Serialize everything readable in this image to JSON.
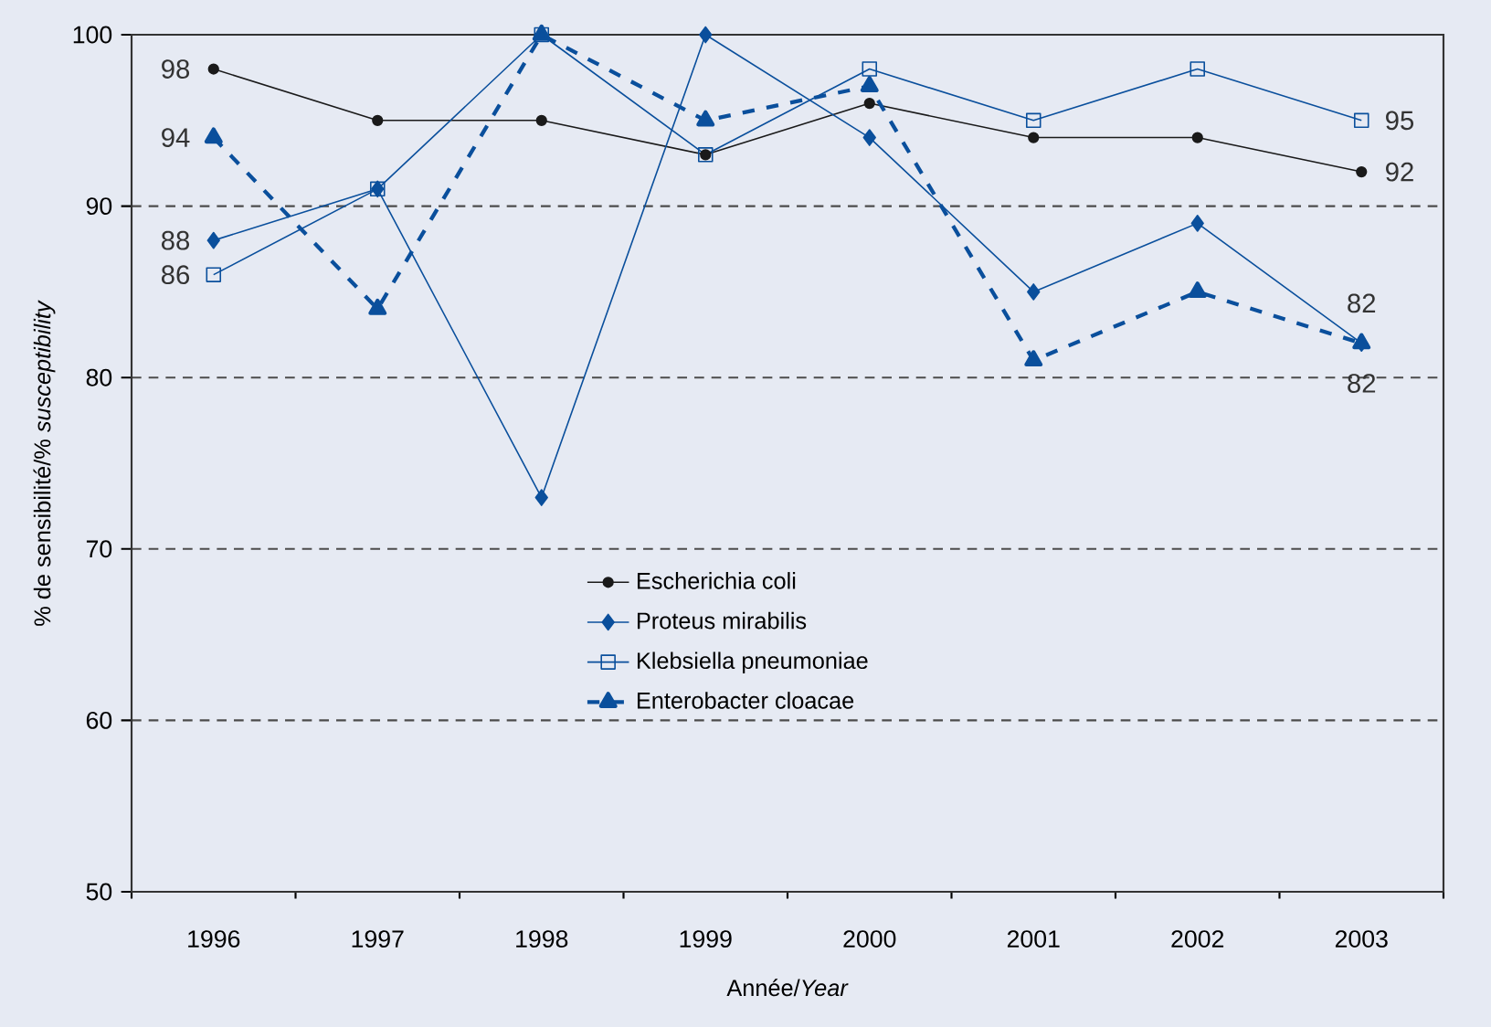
{
  "chart_data": {
    "type": "line",
    "categories": [
      "1996",
      "1997",
      "1998",
      "1999",
      "2000",
      "2001",
      "2002",
      "2003"
    ],
    "xlabel": "Année/*Year*",
    "ylabel": "% de sensibilité/% *susceptibility*",
    "ylim": [
      50,
      100
    ],
    "yticks": [
      50,
      60,
      70,
      80,
      90,
      100
    ],
    "grid": "y",
    "legend": "center",
    "series": [
      {
        "name": "Escherichia coli",
        "color": "#1a1a1a",
        "marker": "circle",
        "line_style": "solid",
        "values": [
          98,
          95,
          95,
          93,
          96,
          94,
          94,
          92
        ],
        "value_labels": [
          "98",
          null,
          null,
          null,
          null,
          null,
          null,
          "92"
        ]
      },
      {
        "name": "Proteus mirabilis",
        "color": "#0a4f9c",
        "marker": "diamond",
        "line_style": "solid",
        "values": [
          88,
          91,
          73,
          100,
          94,
          85,
          89,
          82
        ],
        "value_labels": [
          "88",
          null,
          null,
          null,
          null,
          null,
          null,
          "82"
        ]
      },
      {
        "name": "Klebsiella pneumoniae",
        "color": "#0a4f9c",
        "marker": "square",
        "line_style": "solid",
        "values": [
          86,
          91,
          100,
          93,
          98,
          95,
          98,
          95
        ],
        "value_labels": [
          "86",
          null,
          null,
          null,
          null,
          null,
          null,
          "95"
        ]
      },
      {
        "name": "Enterobacter cloacae",
        "color": "#0a4f9c",
        "marker": "triangle",
        "line_style": "dashed",
        "values": [
          94,
          84,
          100,
          95,
          97,
          81,
          85,
          82
        ],
        "value_labels": [
          "94",
          null,
          null,
          null,
          null,
          null,
          null,
          "82"
        ]
      }
    ]
  }
}
